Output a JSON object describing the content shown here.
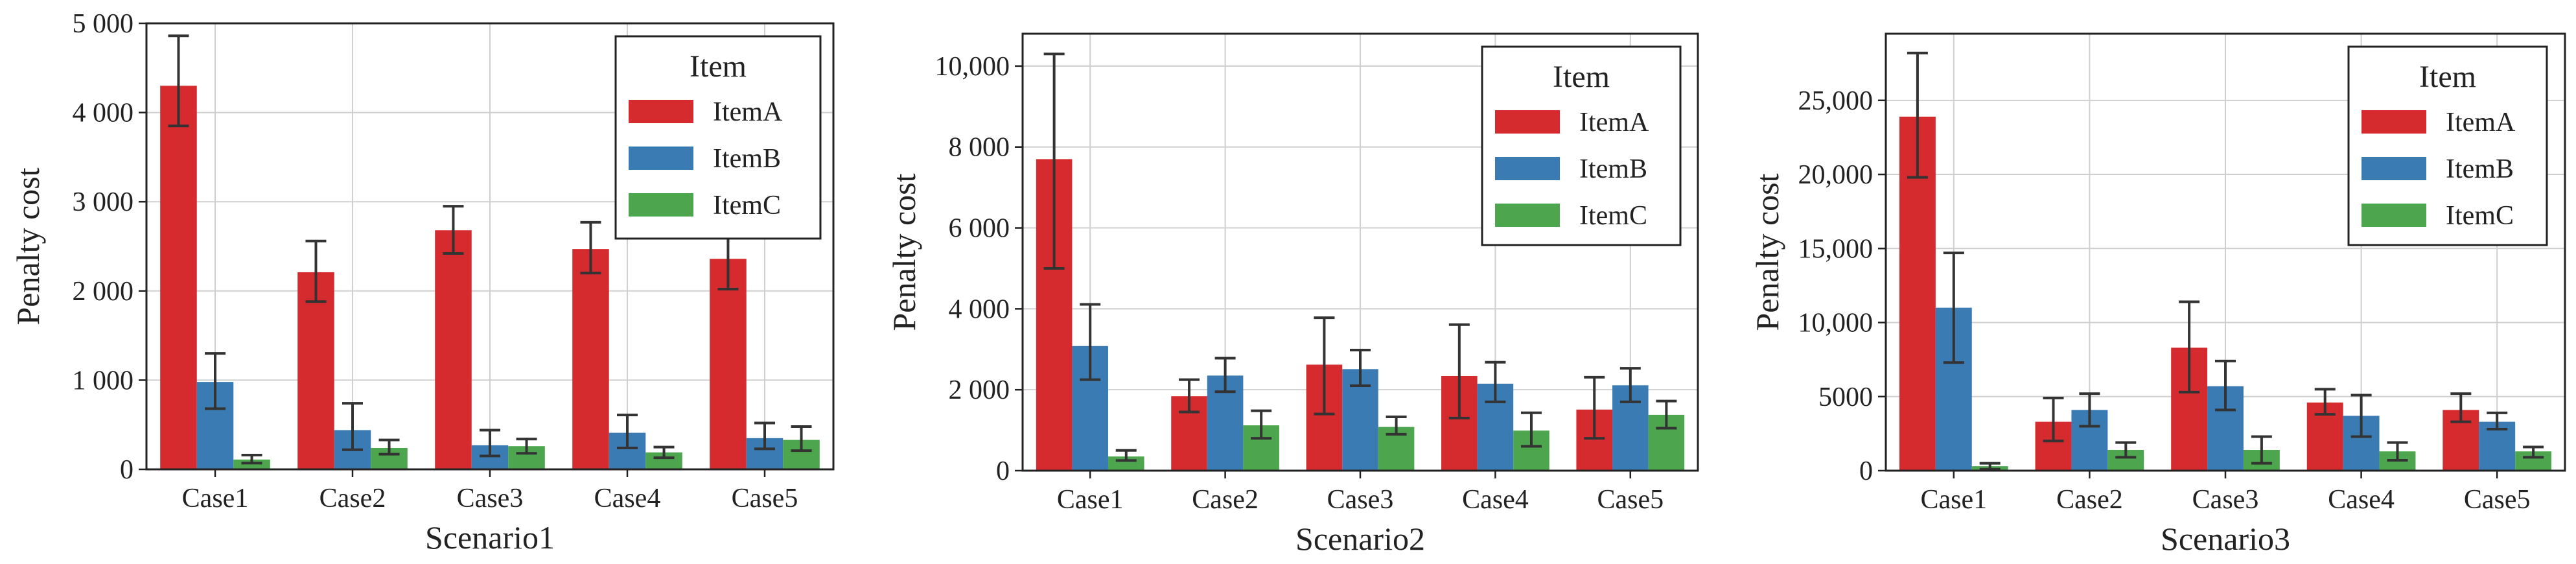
{
  "chart_data": [
    {
      "type": "bar",
      "xlabel": "Scenario1",
      "ylabel": "Penalty cost",
      "categories": [
        "Case1",
        "Case2",
        "Case3",
        "Case4",
        "Case5"
      ],
      "ylim": [
        0,
        5000
      ],
      "yticks": [
        0,
        1000,
        2000,
        3000,
        4000,
        5000
      ],
      "ytick_labels": [
        "0",
        "1 000",
        "2 000",
        "3 000",
        "4 000",
        "5 000"
      ],
      "legend_title": "Item",
      "legend_position": "top-right",
      "grid": true,
      "series": [
        {
          "name": "ItemA",
          "values": [
            4300,
            2210,
            2680,
            2470,
            2360
          ],
          "err_low": [
            3850,
            1880,
            2420,
            2200,
            2020
          ],
          "err_high": [
            4860,
            2560,
            2950,
            2770,
            2720
          ]
        },
        {
          "name": "ItemB",
          "values": [
            980,
            440,
            270,
            410,
            350
          ],
          "err_low": [
            680,
            220,
            150,
            240,
            230
          ],
          "err_high": [
            1300,
            740,
            440,
            610,
            520
          ]
        },
        {
          "name": "ItemC",
          "values": [
            110,
            240,
            260,
            190,
            330
          ],
          "err_low": [
            70,
            170,
            180,
            130,
            210
          ],
          "err_high": [
            160,
            330,
            340,
            250,
            480
          ]
        }
      ]
    },
    {
      "type": "bar",
      "xlabel": "Scenario2",
      "ylabel": "Penalty cost",
      "categories": [
        "Case1",
        "Case2",
        "Case3",
        "Case4",
        "Case5"
      ],
      "ylim": [
        0,
        10800
      ],
      "yticks": [
        0,
        2000,
        4000,
        6000,
        8000,
        10000
      ],
      "ytick_labels": [
        "0",
        "2 000",
        "4 000",
        "6 000",
        "8 000",
        "10,000"
      ],
      "legend_title": "Item",
      "legend_position": "top-right",
      "grid": true,
      "series": [
        {
          "name": "ItemA",
          "values": [
            7700,
            1840,
            2620,
            2340,
            1510
          ],
          "err_low": [
            5000,
            1450,
            1400,
            1300,
            800
          ],
          "err_high": [
            10300,
            2250,
            3780,
            3610,
            2310
          ]
        },
        {
          "name": "ItemB",
          "values": [
            3080,
            2350,
            2510,
            2150,
            2110
          ],
          "err_low": [
            2250,
            1950,
            2100,
            1700,
            1700
          ],
          "err_high": [
            4110,
            2780,
            2980,
            2680,
            2530
          ]
        },
        {
          "name": "ItemC",
          "values": [
            350,
            1120,
            1080,
            990,
            1380
          ],
          "err_low": [
            250,
            800,
            900,
            600,
            1050
          ],
          "err_high": [
            500,
            1480,
            1330,
            1430,
            1720
          ]
        }
      ]
    },
    {
      "type": "bar",
      "xlabel": "Scenario3",
      "ylabel": "Penalty cost",
      "categories": [
        "Case1",
        "Case2",
        "Case3",
        "Case4",
        "Case5"
      ],
      "ylim": [
        0,
        29500
      ],
      "yticks": [
        0,
        5000,
        10000,
        15000,
        20000,
        25000
      ],
      "ytick_labels": [
        "0",
        "5000",
        "10,000",
        "15,000",
        "20,000",
        "25,000"
      ],
      "legend_title": "Item",
      "legend_position": "top-right",
      "grid": true,
      "series": [
        {
          "name": "ItemA",
          "values": [
            23900,
            3300,
            8300,
            4600,
            4100
          ],
          "err_low": [
            19800,
            2000,
            5300,
            3800,
            3300
          ],
          "err_high": [
            28200,
            4900,
            11400,
            5500,
            5200
          ]
        },
        {
          "name": "ItemB",
          "values": [
            11000,
            4100,
            5700,
            3700,
            3300
          ],
          "err_low": [
            7300,
            3000,
            4100,
            2300,
            2800
          ],
          "err_high": [
            14700,
            5200,
            7400,
            5100,
            3900
          ]
        },
        {
          "name": "ItemC",
          "values": [
            300,
            1400,
            1400,
            1300,
            1300
          ],
          "err_low": [
            100,
            900,
            500,
            700,
            900
          ],
          "err_high": [
            500,
            1900,
            2300,
            1900,
            1600
          ]
        }
      ]
    }
  ],
  "colors": {
    "ItemA": "#d62b2e",
    "ItemB": "#3b7bb3",
    "ItemC": "#4da64d"
  }
}
